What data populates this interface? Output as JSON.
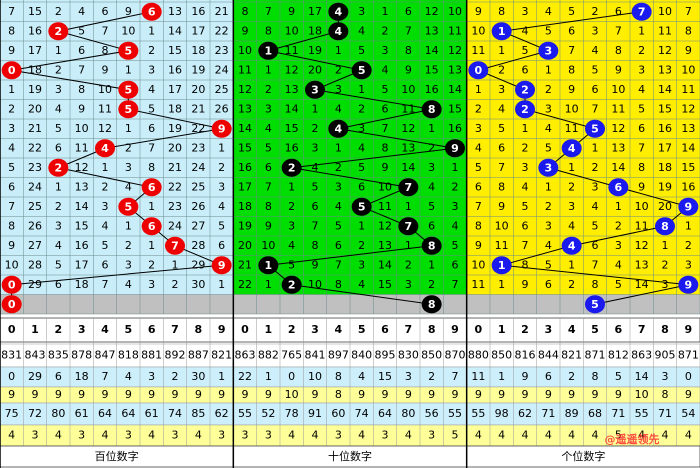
{
  "header_digits": [
    "0",
    "1",
    "2",
    "3",
    "4",
    "5",
    "6",
    "7",
    "8",
    "9"
  ],
  "watermark": "@遥遥领先",
  "panels": [
    {
      "label": "百位数字",
      "hits": [
        6,
        2,
        5,
        0,
        5,
        5,
        9,
        4,
        2,
        6,
        5,
        6,
        7,
        9,
        0
      ],
      "forecast_hit": 0,
      "rows": [
        [
          7,
          15,
          2,
          4,
          6,
          9,
          null,
          13,
          16,
          21
        ],
        [
          8,
          16,
          null,
          5,
          7,
          10,
          1,
          14,
          17,
          22
        ],
        [
          9,
          17,
          1,
          6,
          8,
          null,
          2,
          15,
          18,
          23
        ],
        [
          null,
          18,
          2,
          7,
          9,
          1,
          3,
          16,
          19,
          24
        ],
        [
          1,
          19,
          3,
          8,
          10,
          null,
          4,
          17,
          20,
          25
        ],
        [
          2,
          20,
          4,
          9,
          11,
          null,
          5,
          18,
          21,
          26
        ],
        [
          3,
          21,
          5,
          10,
          12,
          1,
          6,
          19,
          22,
          null
        ],
        [
          4,
          22,
          6,
          11,
          null,
          2,
          7,
          20,
          23,
          1
        ],
        [
          5,
          23,
          null,
          12,
          1,
          3,
          8,
          21,
          24,
          2
        ],
        [
          6,
          24,
          1,
          13,
          2,
          4,
          null,
          22,
          25,
          3
        ],
        [
          7,
          25,
          2,
          14,
          3,
          null,
          1,
          23,
          26,
          4
        ],
        [
          8,
          26,
          3,
          15,
          4,
          1,
          null,
          24,
          27,
          5
        ],
        [
          9,
          27,
          4,
          16,
          5,
          2,
          1,
          null,
          28,
          6
        ],
        [
          10,
          28,
          5,
          17,
          6,
          3,
          2,
          1,
          29,
          null
        ],
        [
          null,
          29,
          6,
          18,
          7,
          4,
          3,
          2,
          30,
          1
        ]
      ],
      "stats": [
        [
          831,
          843,
          835,
          878,
          847,
          818,
          881,
          892,
          887,
          821
        ],
        [
          0,
          29,
          6,
          18,
          7,
          4,
          3,
          2,
          30,
          1
        ],
        [
          9,
          9,
          9,
          9,
          9,
          9,
          9,
          9,
          9,
          9
        ],
        [
          75,
          72,
          80,
          61,
          64,
          64,
          61,
          74,
          85,
          62
        ],
        [
          4,
          3,
          4,
          3,
          4,
          3,
          4,
          3,
          4,
          3
        ]
      ]
    },
    {
      "label": "十位数字",
      "hits": [
        4,
        4,
        1,
        5,
        3,
        8,
        4,
        9,
        2,
        7,
        5,
        7,
        8,
        1,
        2
      ],
      "forecast_hit": 8,
      "rows": [
        [
          8,
          7,
          9,
          17,
          null,
          3,
          1,
          6,
          12,
          10
        ],
        [
          9,
          8,
          10,
          18,
          null,
          4,
          2,
          7,
          13,
          11
        ],
        [
          10,
          null,
          11,
          19,
          1,
          5,
          3,
          8,
          14,
          12
        ],
        [
          11,
          1,
          12,
          20,
          2,
          null,
          4,
          9,
          15,
          13
        ],
        [
          12,
          2,
          13,
          null,
          3,
          1,
          5,
          10,
          16,
          14
        ],
        [
          13,
          3,
          14,
          1,
          4,
          2,
          6,
          11,
          null,
          15
        ],
        [
          14,
          4,
          15,
          2,
          null,
          3,
          7,
          12,
          1,
          16
        ],
        [
          15,
          5,
          16,
          3,
          1,
          4,
          8,
          13,
          2,
          null
        ],
        [
          16,
          6,
          null,
          4,
          2,
          5,
          9,
          14,
          3,
          1
        ],
        [
          17,
          7,
          1,
          5,
          3,
          6,
          10,
          null,
          4,
          2
        ],
        [
          18,
          8,
          2,
          6,
          4,
          null,
          11,
          1,
          5,
          3
        ],
        [
          19,
          9,
          3,
          7,
          5,
          1,
          12,
          null,
          6,
          4
        ],
        [
          20,
          10,
          4,
          8,
          6,
          2,
          13,
          1,
          null,
          5
        ],
        [
          21,
          null,
          5,
          9,
          7,
          3,
          14,
          2,
          1,
          6
        ],
        [
          22,
          1,
          null,
          10,
          8,
          4,
          15,
          3,
          2,
          7
        ]
      ],
      "stats": [
        [
          863,
          882,
          765,
          841,
          897,
          840,
          895,
          830,
          850,
          870
        ],
        [
          22,
          1,
          0,
          10,
          8,
          4,
          15,
          3,
          2,
          7
        ],
        [
          9,
          9,
          10,
          9,
          8,
          9,
          9,
          9,
          9,
          9
        ],
        [
          55,
          52,
          78,
          91,
          60,
          74,
          64,
          80,
          56,
          55
        ],
        [
          3,
          3,
          4,
          4,
          3,
          4,
          3,
          4,
          3,
          5
        ]
      ]
    },
    {
      "label": "个位数字",
      "hits": [
        7,
        1,
        3,
        0,
        2,
        2,
        5,
        4,
        3,
        6,
        9,
        8,
        4,
        1,
        9
      ],
      "forecast_hit": 5,
      "rows": [
        [
          9,
          8,
          3,
          4,
          5,
          2,
          6,
          null,
          10,
          7
        ],
        [
          10,
          null,
          4,
          5,
          6,
          3,
          7,
          1,
          11,
          8
        ],
        [
          11,
          1,
          5,
          null,
          7,
          4,
          8,
          2,
          12,
          9
        ],
        [
          null,
          2,
          6,
          1,
          8,
          5,
          9,
          3,
          13,
          10
        ],
        [
          1,
          3,
          null,
          2,
          9,
          6,
          10,
          4,
          14,
          11
        ],
        [
          2,
          4,
          null,
          3,
          10,
          7,
          11,
          5,
          15,
          12
        ],
        [
          3,
          5,
          1,
          4,
          11,
          null,
          12,
          6,
          16,
          13
        ],
        [
          4,
          6,
          2,
          5,
          null,
          1,
          13,
          7,
          17,
          14
        ],
        [
          5,
          7,
          3,
          null,
          1,
          2,
          14,
          8,
          18,
          15
        ],
        [
          6,
          8,
          4,
          1,
          2,
          3,
          null,
          9,
          19,
          16
        ],
        [
          7,
          9,
          5,
          2,
          3,
          4,
          1,
          10,
          20,
          null
        ],
        [
          8,
          10,
          6,
          3,
          4,
          5,
          2,
          11,
          null,
          1
        ],
        [
          9,
          11,
          7,
          4,
          null,
          6,
          3,
          12,
          1,
          2
        ],
        [
          10,
          null,
          8,
          5,
          1,
          7,
          4,
          13,
          2,
          3
        ],
        [
          11,
          1,
          9,
          6,
          2,
          8,
          5,
          14,
          3,
          null
        ]
      ],
      "stats": [
        [
          880,
          850,
          816,
          844,
          821,
          871,
          812,
          863,
          905,
          871
        ],
        [
          11,
          1,
          9,
          6,
          2,
          8,
          5,
          14,
          3,
          0
        ],
        [
          9,
          9,
          9,
          9,
          9,
          9,
          9,
          10,
          8,
          9
        ],
        [
          55,
          98,
          62,
          71,
          89,
          68,
          71,
          55,
          71,
          54
        ],
        [
          4,
          4,
          4,
          4,
          4,
          4,
          5,
          4,
          4,
          4
        ]
      ]
    }
  ]
}
